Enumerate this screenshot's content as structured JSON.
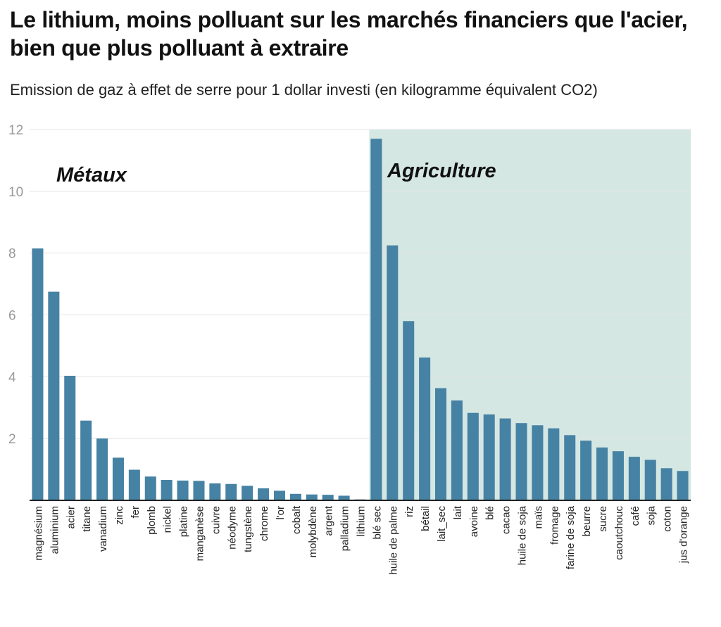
{
  "title": "Le lithium, moins polluant sur les marchés financiers que l'acier, bien que plus polluant à extraire",
  "subtitle": "Emission de gaz à effet de serre pour 1 dollar investi (en kilogramme équivalent CO2)",
  "colors": {
    "bar": "#4682a4",
    "region": "#d5e7e3",
    "grid": "#e4e4e4",
    "axis": "#222222",
    "tick": "#999999"
  },
  "chart_data": {
    "type": "bar",
    "title": "Le lithium, moins polluant sur les marchés financiers que l'acier, bien que plus polluant à extraire",
    "subtitle": "Emission de gaz à effet de serre pour 1 dollar investi (en kilogramme équivalent CO2)",
    "xlabel": "",
    "ylabel": "",
    "ylim": [
      0,
      12
    ],
    "yticks": [
      2,
      4,
      6,
      8,
      10,
      12
    ],
    "grid": true,
    "categories": [
      "magnésium",
      "aluminium",
      "acier",
      "titane",
      "vanadium",
      "zinc",
      "fer",
      "plomb",
      "nickel",
      "platine",
      "manganèse",
      "cuivre",
      "néodyme",
      "tungstène",
      "chrome",
      "l'or",
      "cobalt",
      "molybdène",
      "argent",
      "palladium",
      "lithium",
      "blé sec",
      "huile de palme",
      "riz",
      "bétail",
      "lait_sec",
      "lait",
      "avoine",
      "blé",
      "cacao",
      "huile de soja",
      "maïs",
      "fromage",
      "farine de soja",
      "beurre",
      "sucre",
      "caoutchouc",
      "café",
      "soja",
      "coton",
      "jus d'orange"
    ],
    "values": [
      8.15,
      6.75,
      4.03,
      2.58,
      2.0,
      1.38,
      0.99,
      0.77,
      0.66,
      0.64,
      0.63,
      0.55,
      0.53,
      0.47,
      0.39,
      0.31,
      0.21,
      0.19,
      0.18,
      0.15,
      0.03,
      11.7,
      8.25,
      5.8,
      4.62,
      3.63,
      3.23,
      2.83,
      2.78,
      2.65,
      2.5,
      2.43,
      2.33,
      2.11,
      1.93,
      1.71,
      1.59,
      1.41,
      1.31,
      1.04,
      0.95
    ],
    "annotations": [
      {
        "text": "Métaux",
        "group": "metals"
      },
      {
        "text": "Agriculture",
        "group": "agriculture"
      }
    ],
    "highlight_region": {
      "label": "Agriculture",
      "from_category": "blé sec",
      "to_category": "jus d'orange"
    }
  }
}
